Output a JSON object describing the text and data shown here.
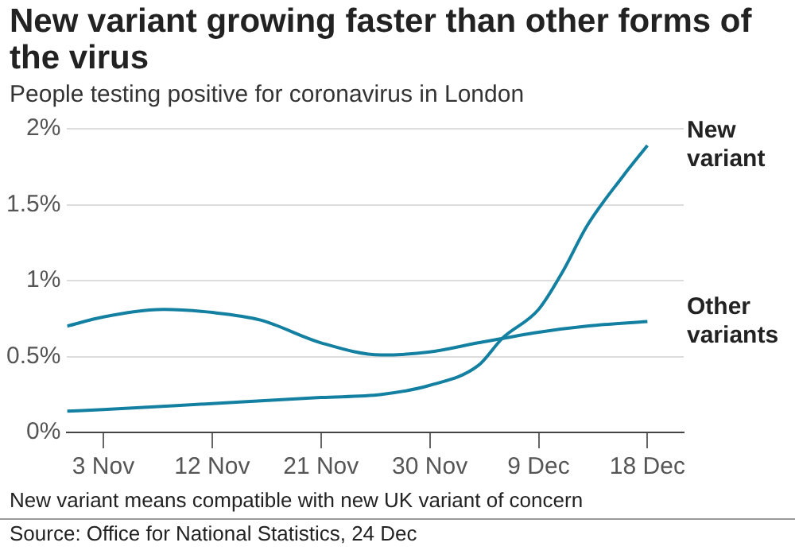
{
  "chart_data": {
    "type": "line",
    "title": "New variant growing faster than other forms of the virus",
    "subtitle": "People testing positive for coronavirus in London",
    "annotations": [
      "New variant means compatible with new UK variant of concern",
      "Source: Office for National Statistics, 24 Dec"
    ],
    "xlim": [
      "--10-31",
      "--12-21"
    ],
    "xticks": [
      {
        "value": "--11-03",
        "label": "3 Nov"
      },
      {
        "value": "--11-12",
        "label": "12 Nov"
      },
      {
        "value": "--11-21",
        "label": "21 Nov"
      },
      {
        "value": "--11-30",
        "label": "30 Nov"
      },
      {
        "value": "--12-09",
        "label": "9 Dec"
      },
      {
        "value": "--12-18",
        "label": "18 Dec"
      }
    ],
    "ylim": [
      0,
      2
    ],
    "yticks": [
      {
        "value": 0,
        "label": "0%"
      },
      {
        "value": 0.5,
        "label": "0.5%"
      },
      {
        "value": 1,
        "label": "1%"
      },
      {
        "value": 1.5,
        "label": "1.5%"
      },
      {
        "value": 2,
        "label": "2%"
      }
    ],
    "grid": "y",
    "legend": false,
    "marker": "none",
    "line_style": "solid",
    "series": [
      {
        "name": "New variant",
        "color": "#1380a1",
        "x": [
          "--10-31",
          "--11-03",
          "--11-12",
          "--11-21",
          "--11-26",
          "--11-30",
          "--12-04",
          "--12-06",
          "--12-09",
          "--12-11",
          "--12-13",
          "--12-16",
          "--12-18"
        ],
        "values": [
          0.14,
          0.15,
          0.19,
          0.23,
          0.25,
          0.31,
          0.44,
          0.62,
          0.81,
          1.06,
          1.36,
          1.69,
          1.89
        ]
      },
      {
        "name": "Other variants",
        "color": "#1380a1",
        "x": [
          "--10-31",
          "--11-03",
          "--11-08",
          "--11-12",
          "--11-16",
          "--11-21",
          "--11-26",
          "--11-30",
          "--12-04",
          "--12-09",
          "--12-13",
          "--12-18"
        ],
        "values": [
          0.7,
          0.76,
          0.81,
          0.79,
          0.74,
          0.59,
          0.51,
          0.53,
          0.59,
          0.66,
          0.7,
          0.73
        ]
      }
    ]
  }
}
